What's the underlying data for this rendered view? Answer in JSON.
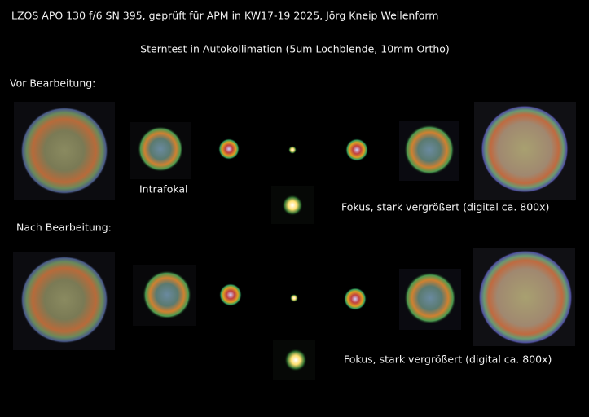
{
  "header": {
    "title": "LZOS APO 130 f/6 SN 395, geprüft für APM in KW17-19 2025, Jörg Kneip Wellenform",
    "subtitle": "Sterntest in Autokollimation (5um Lochblende, 10mm Ortho)"
  },
  "sections": [
    {
      "label": "Vor Bearbeitung:",
      "intrafocal_caption": "Intrafokal",
      "focus_caption": "Fokus, stark vergrößert (digital ca. 800x)"
    },
    {
      "label": "Nach Bearbeitung:",
      "focus_caption": "Fokus, stark vergrößert (digital ca. 800x)"
    }
  ]
}
